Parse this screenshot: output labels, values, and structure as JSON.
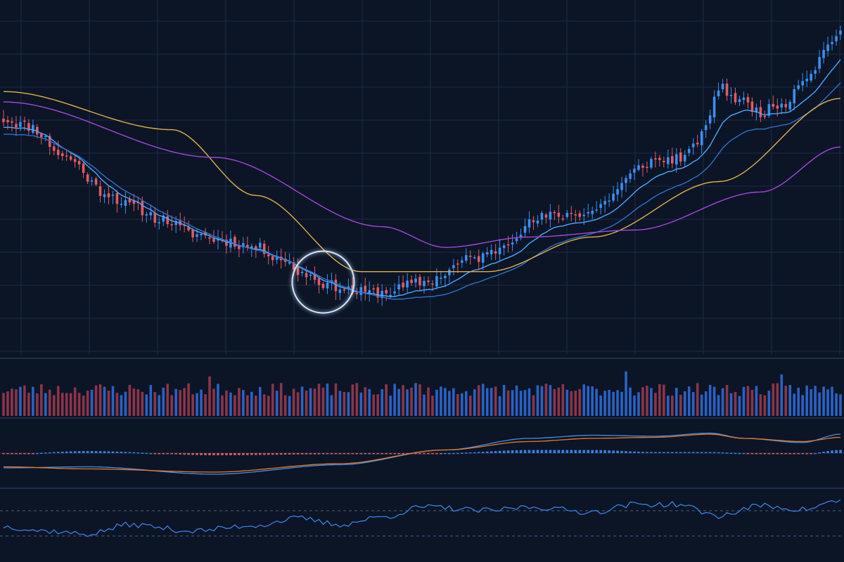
{
  "colors": {
    "background": "#0b1526",
    "grid": "#1b2a44",
    "divider": "#2a3c5c",
    "up": "#3b8ff0",
    "down": "#e35a62",
    "ma_fast": "#4aa8ff",
    "ma_mid": "#2f72c8",
    "ma_slow": "#e3b04b",
    "ma_long": "#a447d8",
    "macd_line": "#4a8fe0",
    "signal_line": "#e27a2e",
    "rsi_line": "#3d7fe0",
    "highlight": "#cfe6ff"
  },
  "chart_data": [
    {
      "type": "candlestick",
      "panel": "price",
      "title": "",
      "xlabel": "",
      "ylabel": "",
      "grid": true,
      "ylim": [
        0,
        100
      ],
      "x_count": 200,
      "close_anchors": [
        [
          0,
          68
        ],
        [
          6,
          66
        ],
        [
          15,
          57
        ],
        [
          24,
          47
        ],
        [
          30,
          43
        ],
        [
          38,
          39
        ],
        [
          45,
          35
        ],
        [
          52,
          33
        ],
        [
          60,
          31
        ],
        [
          66,
          28
        ],
        [
          70,
          24
        ],
        [
          78,
          20
        ],
        [
          85,
          18
        ],
        [
          90,
          18
        ],
        [
          100,
          21
        ],
        [
          112,
          28
        ],
        [
          130,
          40
        ],
        [
          138,
          41
        ],
        [
          155,
          56
        ],
        [
          162,
          57
        ],
        [
          166,
          63
        ],
        [
          170,
          77
        ],
        [
          176,
          73
        ],
        [
          180,
          70
        ],
        [
          186,
          73
        ],
        [
          190,
          80
        ],
        [
          199,
          93
        ]
      ],
      "moving_averages": [
        {
          "style": "fast",
          "smoothing": 0.18,
          "offset": -1.5
        },
        {
          "style": "mid",
          "smoothing": 0.1,
          "offset": -3.5
        },
        {
          "style": "slow",
          "points": [
            [
              0,
              76
            ],
            [
              40,
              65
            ],
            [
              60,
              46
            ],
            [
              85,
              24
            ],
            [
              115,
              24
            ],
            [
              140,
              34
            ],
            [
              170,
              50
            ],
            [
              199,
              74
            ]
          ]
        },
        {
          "style": "long",
          "points": [
            [
              0,
              73
            ],
            [
              50,
              57
            ],
            [
              90,
              37
            ],
            [
              105,
              31
            ],
            [
              125,
              34
            ],
            [
              150,
              36
            ],
            [
              180,
              47
            ],
            [
              199,
              60
            ]
          ]
        }
      ],
      "annotation": {
        "kind": "circle",
        "x_index": 76,
        "y_value": 21
      }
    },
    {
      "type": "bar",
      "panel": "volume",
      "ylim": [
        0,
        100
      ],
      "baseline": 52,
      "spikes": [
        [
          49,
          78
        ],
        [
          98,
          65
        ],
        [
          148,
          88
        ],
        [
          185,
          82
        ]
      ]
    },
    {
      "type": "macd",
      "panel": "macd",
      "ylim": [
        -30,
        30
      ],
      "histogram": true,
      "macd_points": [
        [
          0,
          -14
        ],
        [
          20,
          -13
        ],
        [
          50,
          -20
        ],
        [
          80,
          -11
        ],
        [
          105,
          3
        ],
        [
          125,
          14
        ],
        [
          140,
          17
        ],
        [
          155,
          16
        ],
        [
          168,
          19
        ],
        [
          176,
          14
        ],
        [
          190,
          10
        ],
        [
          199,
          18
        ]
      ],
      "signal_points": [
        [
          0,
          -13
        ],
        [
          20,
          -15
        ],
        [
          50,
          -18
        ],
        [
          80,
          -10
        ],
        [
          105,
          3
        ],
        [
          125,
          11
        ],
        [
          140,
          14
        ],
        [
          155,
          15
        ],
        [
          168,
          18
        ],
        [
          176,
          14
        ],
        [
          190,
          11
        ],
        [
          199,
          15
        ]
      ]
    },
    {
      "type": "line",
      "panel": "rsi",
      "ylim": [
        0,
        100
      ],
      "levels": [
        70,
        30
      ],
      "rsi_points": [
        [
          0,
          45
        ],
        [
          10,
          38
        ],
        [
          20,
          33
        ],
        [
          30,
          48
        ],
        [
          45,
          38
        ],
        [
          60,
          47
        ],
        [
          70,
          58
        ],
        [
          80,
          48
        ],
        [
          90,
          60
        ],
        [
          100,
          76
        ],
        [
          115,
          70
        ],
        [
          125,
          76
        ],
        [
          140,
          68
        ],
        [
          150,
          80
        ],
        [
          160,
          80
        ],
        [
          170,
          62
        ],
        [
          180,
          78
        ],
        [
          190,
          72
        ],
        [
          199,
          86
        ]
      ]
    }
  ]
}
